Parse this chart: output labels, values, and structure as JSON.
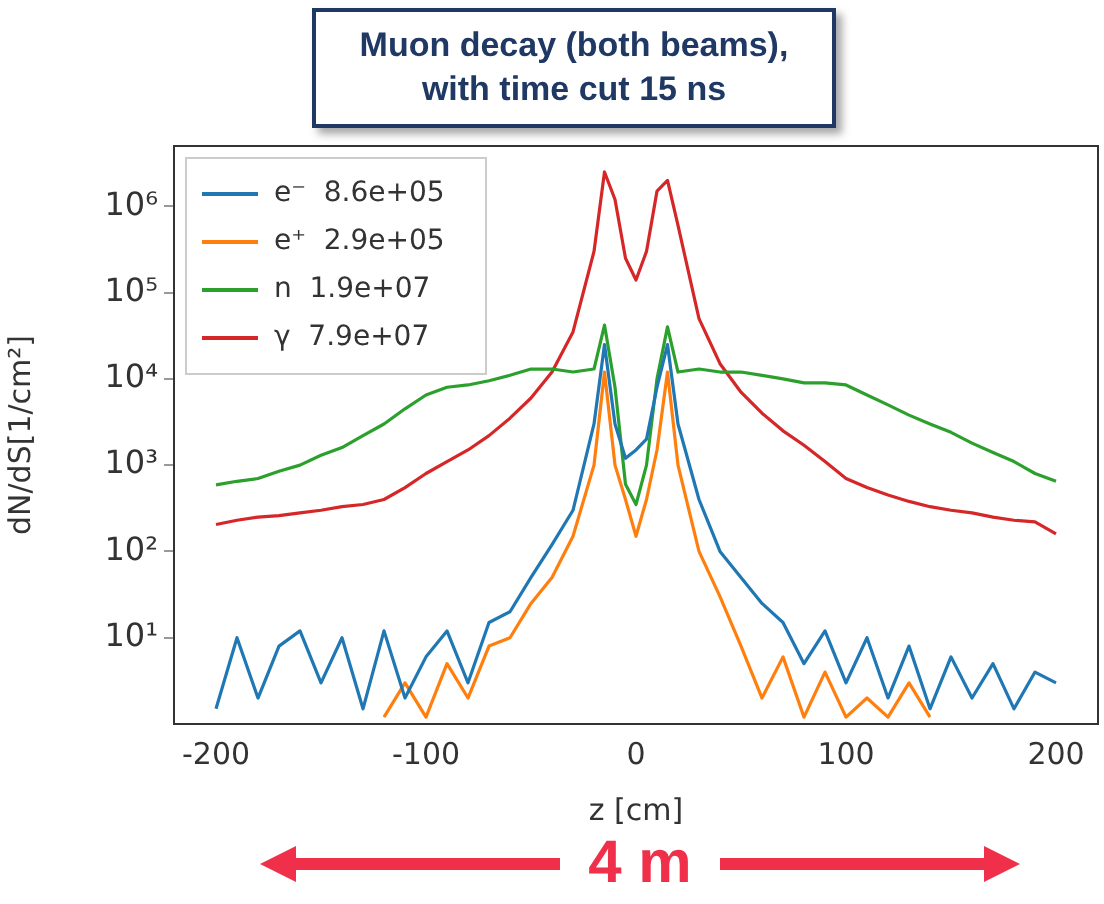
{
  "chart_data": {
    "type": "line",
    "title": "Muon decay (both beams), with time cut 15 ns",
    "xlabel": "z [cm]",
    "ylabel": "dN/dS[1/cm²]",
    "x": [
      -200,
      -190,
      -180,
      -170,
      -160,
      -150,
      -140,
      -130,
      -120,
      -110,
      -100,
      -90,
      -80,
      -70,
      -60,
      -50,
      -40,
      -30,
      -20,
      -15,
      -10,
      -5,
      0,
      5,
      10,
      15,
      20,
      30,
      40,
      50,
      60,
      70,
      80,
      90,
      100,
      110,
      120,
      130,
      140,
      150,
      160,
      170,
      180,
      190,
      200
    ],
    "series": [
      {
        "name": "e⁻  8.6e+05",
        "color": "#1f77b4",
        "values": [
          1.5,
          10,
          2,
          8,
          12,
          3,
          10,
          1.5,
          12,
          2,
          6,
          12,
          3,
          15,
          20,
          50,
          120,
          300,
          3000,
          25000,
          3000,
          1200,
          1500,
          2000,
          8000,
          25000,
          3000,
          400,
          100,
          50,
          25,
          15,
          5,
          12,
          3,
          10,
          2,
          8,
          1.5,
          6,
          2,
          5,
          1.5,
          4,
          3
        ]
      },
      {
        "name": "e⁺  2.9e+05",
        "color": "#ff7f0e",
        "values": [
          null,
          null,
          null,
          null,
          null,
          null,
          null,
          null,
          1.2,
          3,
          1.2,
          5,
          2,
          8,
          10,
          25,
          50,
          150,
          1000,
          12000,
          1000,
          400,
          150,
          400,
          1500,
          12000,
          1000,
          100,
          30,
          8,
          2,
          6,
          1.2,
          4,
          1.2,
          2,
          1.2,
          3,
          1.2,
          null,
          null,
          null,
          null,
          null,
          null
        ]
      },
      {
        "name": "n  1.9e+07",
        "color": "#2ca02c",
        "values": [
          590,
          650,
          700,
          850,
          1000,
          1300,
          1600,
          2200,
          3000,
          4500,
          6500,
          8000,
          8500,
          9500,
          11000,
          13000,
          13000,
          12000,
          13000,
          42000,
          8000,
          600,
          350,
          1000,
          10000,
          40000,
          12000,
          13000,
          12000,
          12000,
          11000,
          10000,
          9000,
          9000,
          8500,
          6500,
          5000,
          3800,
          3000,
          2400,
          1800,
          1400,
          1100,
          800,
          650
        ]
      },
      {
        "name": "γ  7.9e+07",
        "color": "#d62728",
        "values": [
          205,
          230,
          250,
          260,
          280,
          300,
          330,
          350,
          400,
          550,
          800,
          1100,
          1500,
          2200,
          3500,
          6000,
          12000,
          35000,
          300000,
          2500000,
          1200000,
          250000,
          140000,
          300000,
          1500000,
          2000000,
          600000,
          50000,
          15000,
          7000,
          4000,
          2500,
          1700,
          1100,
          700,
          550,
          450,
          380,
          330,
          300,
          280,
          250,
          230,
          220,
          160
        ]
      }
    ],
    "xlim": [
      -220,
      220
    ],
    "xticks": [
      -200,
      -100,
      0,
      100,
      200
    ],
    "ylim": [
      1,
      5000000
    ],
    "yticks": [
      {
        "value": 10,
        "label": "10¹"
      },
      {
        "value": 100,
        "label": "10²"
      },
      {
        "value": 1000,
        "label": "10³"
      },
      {
        "value": 10000,
        "label": "10⁴"
      },
      {
        "value": 100000,
        "label": "10⁵"
      },
      {
        "value": 1000000,
        "label": "10⁶"
      }
    ],
    "log": "y",
    "legend": "top left",
    "annotations": [
      "4 m"
    ]
  }
}
